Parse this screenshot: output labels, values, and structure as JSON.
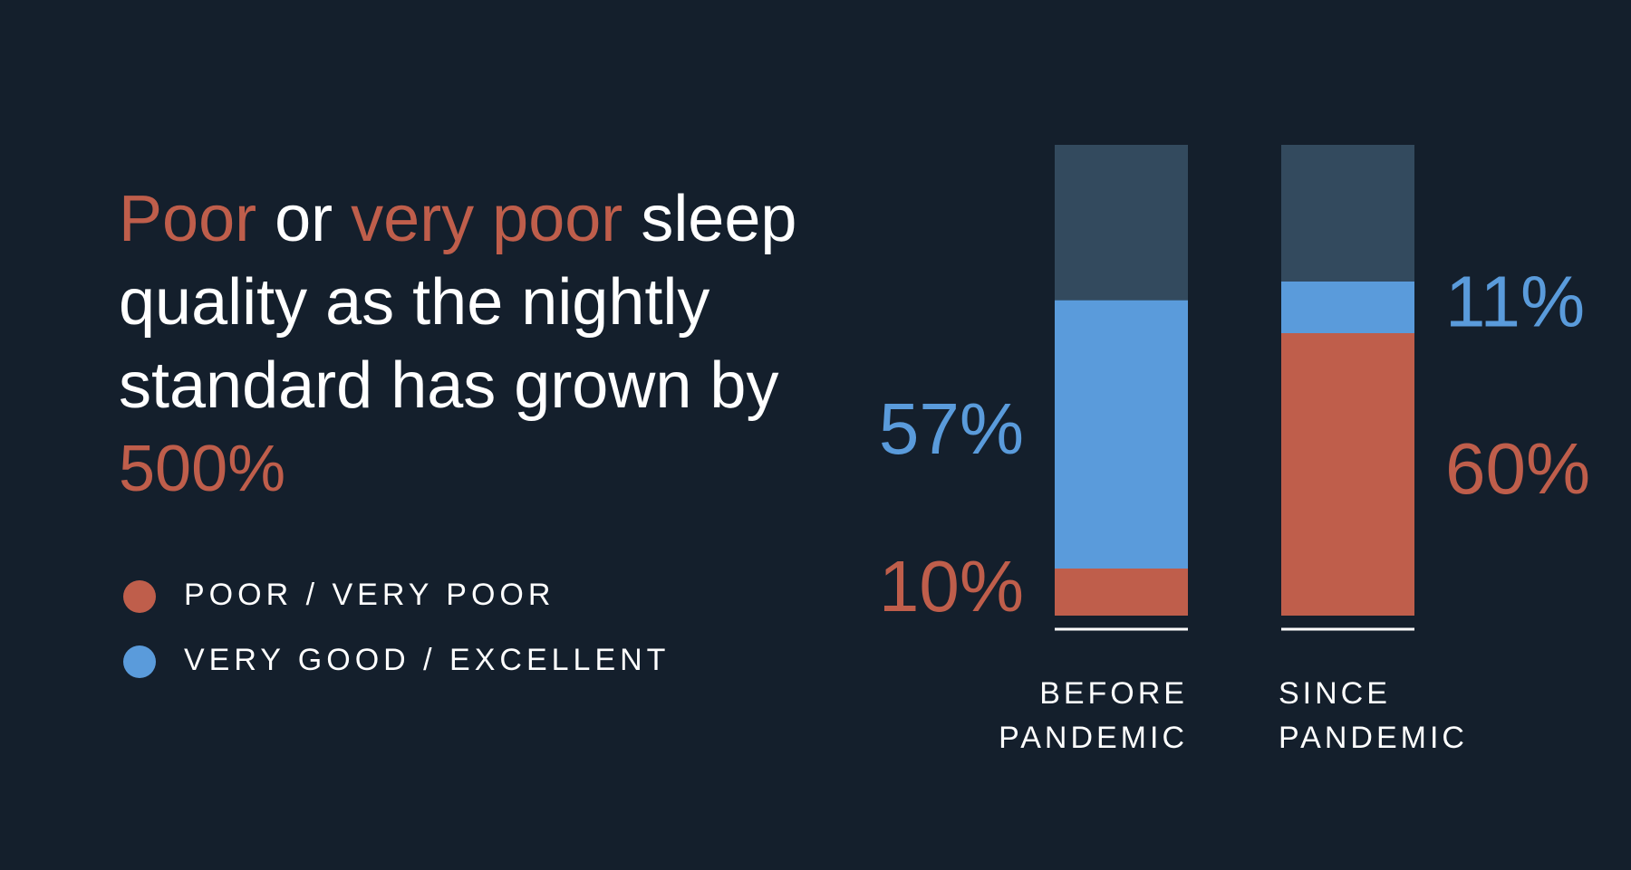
{
  "chart_data": {
    "type": "stacked_bar",
    "title_parts": [
      "Poor",
      "or",
      "very poor",
      "sleep quality as the nightly standard has grown by",
      "500%"
    ],
    "categories": [
      "BEFORE PANDEMIC",
      "SINCE PANDEMIC"
    ],
    "series": [
      {
        "name": "POOR / VERY POOR",
        "color": "#bf5e4b",
        "values": [
          10,
          60
        ],
        "value_labels": [
          "10%",
          "60%"
        ]
      },
      {
        "name": "VERY GOOD / EXCELLENT",
        "color": "#5a9bdb",
        "values": [
          57,
          11
        ],
        "value_labels": [
          "57%",
          "11%"
        ]
      },
      {
        "color": "#334a5e",
        "values": [
          33,
          29
        ]
      }
    ],
    "ylim": [
      0,
      100
    ]
  }
}
